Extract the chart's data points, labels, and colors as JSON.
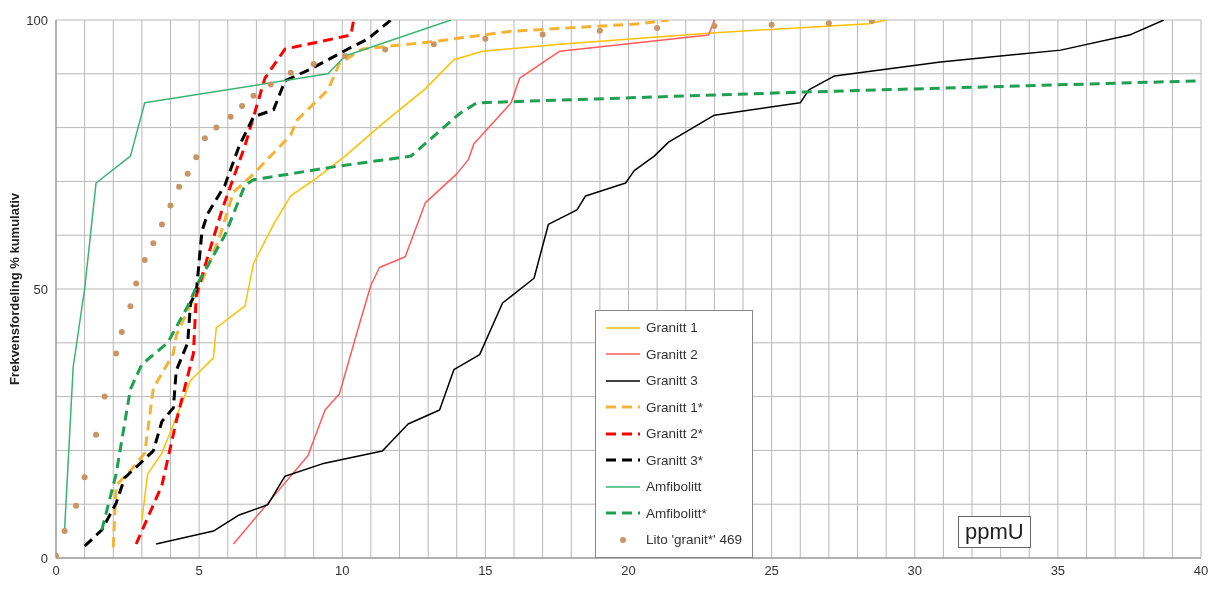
{
  "chart_data": {
    "type": "line",
    "ylabel": "Frekvensfordeling % kumulativ",
    "annotations": [
      "ppmU"
    ],
    "legend": "bottom",
    "grid": true,
    "xlim": [
      0,
      40
    ],
    "ylim": [
      0,
      100
    ],
    "xticks": [
      0,
      {
        "value": 1,
        "label": null
      },
      {
        "value": 2,
        "label": null
      },
      {
        "value": 3,
        "label": null
      },
      {
        "value": 4,
        "label": null
      },
      5,
      {
        "value": 6,
        "label": null
      },
      {
        "value": 7,
        "label": null
      },
      {
        "value": 8,
        "label": null
      },
      {
        "value": 9,
        "label": null
      },
      10,
      {
        "value": 11,
        "label": null
      },
      {
        "value": 12,
        "label": null
      },
      {
        "value": 13,
        "label": null
      },
      {
        "value": 14,
        "label": null
      },
      15,
      {
        "value": 16,
        "label": null
      },
      {
        "value": 17,
        "label": null
      },
      {
        "value": 18,
        "label": null
      },
      {
        "value": 19,
        "label": null
      },
      20,
      {
        "value": 21,
        "label": null
      },
      {
        "value": 22,
        "label": null
      },
      {
        "value": 23,
        "label": null
      },
      {
        "value": 24,
        "label": null
      },
      25,
      {
        "value": 26,
        "label": null
      },
      {
        "value": 27,
        "label": null
      },
      {
        "value": 28,
        "label": null
      },
      {
        "value": 29,
        "label": null
      },
      30,
      {
        "value": 31,
        "label": null
      },
      {
        "value": 32,
        "label": null
      },
      {
        "value": 33,
        "label": null
      },
      {
        "value": 34,
        "label": null
      },
      35,
      {
        "value": 36,
        "label": null
      },
      {
        "value": 37,
        "label": null
      },
      {
        "value": 38,
        "label": null
      },
      {
        "value": 39,
        "label": null
      },
      40
    ],
    "yticks": [
      0,
      {
        "value": 10,
        "label": null
      },
      {
        "value": 20,
        "label": null
      },
      {
        "value": 30,
        "label": null
      },
      {
        "value": 40,
        "label": null
      },
      50,
      {
        "value": 60,
        "label": null
      },
      {
        "value": 70,
        "label": null
      },
      {
        "value": 80,
        "label": null
      },
      {
        "value": 90,
        "label": null
      },
      100
    ],
    "series": [
      {
        "name": "Granitt 1",
        "color": "#ffc000",
        "line_style": "solid",
        "marker": "none",
        "x": [
          3.0,
          3.2,
          3.7,
          4.4,
          4.7,
          5.5,
          5.6,
          6.6,
          6.9,
          7.6,
          8.2,
          9.1,
          10.1,
          11.4,
          12.9,
          13.9,
          14.9,
          17.6,
          22.9,
          28.4,
          29
        ],
        "values": [
          7,
          15.6,
          19.5,
          28.8,
          33,
          37.2,
          42.8,
          46.8,
          54.7,
          62,
          67.3,
          70.6,
          74.7,
          80.7,
          87.2,
          92.6,
          94.2,
          95.5,
          97.6,
          99.3,
          100
        ]
      },
      {
        "name": "Granitt 2",
        "color": "#ff5b5b",
        "line_style": "solid",
        "marker": "none",
        "x": [
          6.2,
          7.4,
          8.8,
          9.4,
          9.9,
          10.6,
          11.0,
          11.3,
          12.2,
          12.9,
          14.0,
          14.4,
          14.6,
          15.9,
          16.2,
          17.6,
          22.8,
          23.0
        ],
        "values": [
          2.6,
          10.2,
          19,
          27.5,
          30.5,
          43.5,
          50.7,
          54,
          56,
          66,
          71.4,
          74,
          77,
          84.6,
          89.2,
          94.2,
          97.2,
          100
        ]
      },
      {
        "name": "Granitt 3",
        "color": "#000000",
        "line_style": "solid",
        "marker": "none",
        "x": [
          3.5,
          5.5,
          6.4,
          7.4,
          8.0,
          9.3,
          11.4,
          12.3,
          13.4,
          13.9,
          14.8,
          15.6,
          16.7,
          17.2,
          18.2,
          18.5,
          19.9,
          20.2,
          20.9,
          21.4,
          23.0,
          26.0,
          26.3,
          27.2,
          30.9,
          35.1,
          37.5,
          38.7
        ],
        "values": [
          2.6,
          5,
          8,
          9.9,
          15.2,
          17.5,
          19.9,
          24.9,
          27.5,
          35,
          37.8,
          47.4,
          52,
          62,
          64.7,
          67.3,
          69.7,
          72,
          74.7,
          77.3,
          82.3,
          84.6,
          87,
          89.6,
          92.2,
          94.4,
          97.2,
          100
        ]
      },
      {
        "name": "Granitt 1*",
        "color": "#f5b335",
        "line_style": "dashed",
        "marker": "none",
        "x": [
          2.0,
          2.1,
          2.6,
          3.1,
          3.4,
          4.1,
          4.2,
          5.1,
          5.7,
          6.2,
          6.9,
          8.2,
          8.4,
          9.5,
          9.9,
          10.7,
          13.2,
          15.9,
          20.4,
          21.4
        ],
        "values": [
          2,
          13.5,
          16.2,
          19.5,
          31.5,
          38,
          41.4,
          51.5,
          59.4,
          68,
          71.4,
          78.6,
          81.3,
          87,
          91.9,
          94.6,
          96,
          97.9,
          99.3,
          100
        ]
      },
      {
        "name": "Granitt 2*",
        "color": "#ff0000",
        "line_style": "dashed",
        "marker": "none",
        "x": [
          2.8,
          3.7,
          4.2,
          4.8,
          4.9,
          5.3,
          5.8,
          6.6,
          7.3,
          8.0,
          10.3,
          10.4
        ],
        "values": [
          2.6,
          13.5,
          25.4,
          38,
          48.7,
          56,
          64.7,
          76.6,
          89.2,
          94.6,
          97.2,
          100
        ]
      },
      {
        "name": "Granitt 3*",
        "color": "#000000",
        "line_style": "dashed",
        "marker": "none",
        "x": [
          1.0,
          1.6,
          2.1,
          2.4,
          3.4,
          3.7,
          4.1,
          4.2,
          4.6,
          4.7,
          4.9,
          5.1,
          5.3,
          5.9,
          6.4,
          6.9,
          7.6,
          8.0,
          8.9,
          10.2,
          10.9,
          11.7
        ],
        "values": [
          2.2,
          5.2,
          10.2,
          14.9,
          19.9,
          25.4,
          27.9,
          34.8,
          40,
          47.4,
          49.4,
          60.8,
          64,
          69.3,
          76.6,
          82,
          83.3,
          88.7,
          90.9,
          94.6,
          96.5,
          100
        ]
      },
      {
        "name": "Amfibolitt",
        "color": "#3cb371",
        "line_style": "solid",
        "marker": "none",
        "x": [
          0.3,
          0.6,
          1.0,
          1.4,
          2.6,
          3.1,
          9.5,
          10.1,
          13.8
        ],
        "values": [
          5.2,
          35.5,
          50,
          69.7,
          74.7,
          84.6,
          90,
          93.3,
          100
        ]
      },
      {
        "name": "Amfibolitt*",
        "color": "#1fa050",
        "line_style": "dashed",
        "marker": "none",
        "x": [
          1.6,
          2.1,
          2.6,
          3.0,
          3.9,
          4.6,
          5.0,
          5.9,
          6.6,
          6.9,
          9.7,
          12.4,
          14.1,
          14.7,
          26.1,
          40
        ],
        "values": [
          5.2,
          15.6,
          31.4,
          36,
          40,
          46.8,
          51.5,
          60,
          69.3,
          70.3,
          72.7,
          74.7,
          82.6,
          84.6,
          86.6,
          88.7
        ]
      },
      {
        "name": "Lito 'granit*' 469",
        "color": "#c89664",
        "type": "scatter",
        "marker": "circle",
        "x": [
          0,
          0.3,
          0.7,
          1.0,
          1.4,
          1.7,
          2.1,
          2.3,
          2.6,
          2.8,
          3.1,
          3.4,
          3.7,
          4.0,
          4.3,
          4.6,
          4.9,
          5.2,
          5.6,
          6.1,
          6.5,
          6.9,
          7.5,
          8.2,
          9.0,
          10.1,
          11.5,
          13.2,
          15,
          17,
          19,
          21,
          23,
          25,
          27,
          28.5
        ],
        "values": [
          0.4,
          5,
          9.7,
          15,
          22.9,
          30,
          38,
          42,
          46.8,
          51,
          55.4,
          58.5,
          62,
          65.5,
          69,
          71.4,
          74.5,
          78,
          80,
          82,
          84,
          85.9,
          88,
          90.2,
          91.8,
          93.3,
          94.5,
          95.5,
          96.5,
          97.3,
          98,
          98.5,
          98.9,
          99.1,
          99.4,
          99.8
        ]
      }
    ]
  }
}
